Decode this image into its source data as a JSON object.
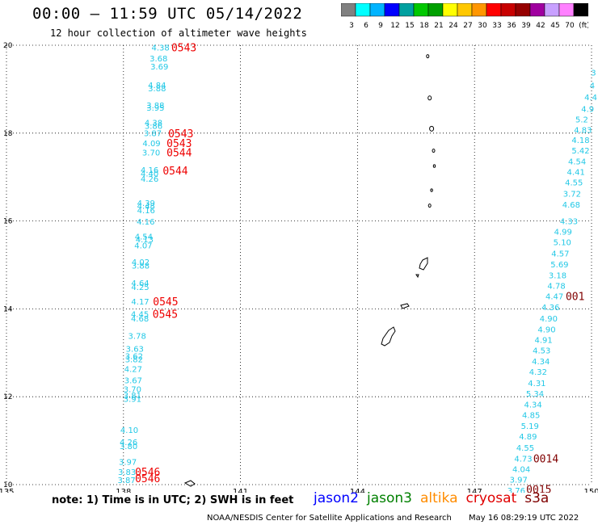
{
  "header": {
    "title": "00:00 – 11:59 UTC 05/14/2022",
    "subtitle": "12 hour collection of altimeter wave heights"
  },
  "colorbar": {
    "colors": [
      "#808080",
      "#00ffff",
      "#00b4ff",
      "#0000ff",
      "#00a0a0",
      "#00c800",
      "#00a000",
      "#ffff00",
      "#ffc800",
      "#ff9600",
      "#ff0000",
      "#c80000",
      "#960000",
      "#a000a0",
      "#c8a0ff",
      "#ff80ff",
      "#000000"
    ],
    "labels": [
      "3",
      "6",
      "9",
      "12",
      "15",
      "18",
      "21",
      "24",
      "27",
      "30",
      "33",
      "36",
      "39",
      "42",
      "45",
      "70",
      "(ft)"
    ]
  },
  "footer": {
    "note": "note:  1) Time is in UTC;  2) SWH is in feet",
    "satellites": [
      {
        "name": "jason2",
        "color": "#0000ff"
      },
      {
        "name": "jason3",
        "color": "#008000"
      },
      {
        "name": "altika",
        "color": "#ff8c00"
      },
      {
        "name": "cryosat",
        "color": "#e00000"
      },
      {
        "name": "s3a",
        "color": "#800000"
      }
    ],
    "credit": "NOAA/NESDIS Center for Satellite Applications and Research",
    "timestamp": "May 16 08:29:19 UTC 2022"
  },
  "chart_data": {
    "type": "scatter",
    "title": "00:00 – 11:59 UTC 05/14/2022",
    "xlim": [
      135,
      150
    ],
    "ylim": [
      10,
      20
    ],
    "xticks": [
      "135",
      "138",
      "141",
      "144",
      "147",
      "150"
    ],
    "yticks": [
      "10",
      "12",
      "14",
      "16",
      "18",
      "20"
    ],
    "grid": true,
    "track_color": "#22c8e6",
    "time_color_red": "#ee0000",
    "time_color_dark": "#800000",
    "track_west": [
      {
        "x": 138.95,
        "y": 19.95,
        "v": "4.38"
      },
      {
        "x": 138.9,
        "y": 19.71,
        "v": "3.68"
      },
      {
        "x": 138.92,
        "y": 19.52,
        "v": "3.69"
      },
      {
        "x": 138.86,
        "y": 19.1,
        "v": "4.84"
      },
      {
        "x": 138.86,
        "y": 19.03,
        "v": "3.88"
      },
      {
        "x": 138.82,
        "y": 18.64,
        "v": "3.88"
      },
      {
        "x": 138.82,
        "y": 18.58,
        "v": "3.95"
      },
      {
        "x": 138.77,
        "y": 18.24,
        "v": "4.38"
      },
      {
        "x": 138.77,
        "y": 18.17,
        "v": "3.86"
      },
      {
        "x": 138.75,
        "y": 18.01,
        "v": "3.87"
      },
      {
        "x": 138.72,
        "y": 17.78,
        "v": "4.09"
      },
      {
        "x": 138.71,
        "y": 17.56,
        "v": "3.70"
      },
      {
        "x": 138.67,
        "y": 17.17,
        "v": "4.16"
      },
      {
        "x": 138.67,
        "y": 17.09,
        "v": "4.40"
      },
      {
        "x": 138.67,
        "y": 16.97,
        "v": "4.26"
      },
      {
        "x": 138.58,
        "y": 16.42,
        "v": "4.39"
      },
      {
        "x": 138.58,
        "y": 16.35,
        "v": "4.48"
      },
      {
        "x": 138.58,
        "y": 16.25,
        "v": "4.16"
      },
      {
        "x": 138.57,
        "y": 15.99,
        "v": "4.16"
      },
      {
        "x": 138.52,
        "y": 15.65,
        "v": "4.54"
      },
      {
        "x": 138.54,
        "y": 15.59,
        "v": "4.13"
      },
      {
        "x": 138.51,
        "y": 15.45,
        "v": "4.07"
      },
      {
        "x": 138.44,
        "y": 15.07,
        "v": "4.02"
      },
      {
        "x": 138.44,
        "y": 14.99,
        "v": "3.88"
      },
      {
        "x": 138.43,
        "y": 14.6,
        "v": "4.64"
      },
      {
        "x": 138.43,
        "y": 14.5,
        "v": "4.25"
      },
      {
        "x": 138.43,
        "y": 14.17,
        "v": "4.17"
      },
      {
        "x": 138.42,
        "y": 13.89,
        "v": "4.45"
      },
      {
        "x": 138.42,
        "y": 13.79,
        "v": "4.68"
      },
      {
        "x": 138.35,
        "y": 13.39,
        "v": "3.78"
      },
      {
        "x": 138.29,
        "y": 13.1,
        "v": "3.63"
      },
      {
        "x": 138.27,
        "y": 12.93,
        "v": "3.62"
      },
      {
        "x": 138.27,
        "y": 12.86,
        "v": "3.82"
      },
      {
        "x": 138.25,
        "y": 12.64,
        "v": "4.27"
      },
      {
        "x": 138.25,
        "y": 12.38,
        "v": "3.67"
      },
      {
        "x": 138.23,
        "y": 12.18,
        "v": "3.70"
      },
      {
        "x": 138.23,
        "y": 12.04,
        "v": "3.81"
      },
      {
        "x": 138.23,
        "y": 11.96,
        "v": "3.91"
      },
      {
        "x": 138.15,
        "y": 11.25,
        "v": "4.10"
      },
      {
        "x": 138.13,
        "y": 10.97,
        "v": "4.26"
      },
      {
        "x": 138.13,
        "y": 10.88,
        "v": "3.80"
      },
      {
        "x": 138.11,
        "y": 10.52,
        "v": "3.97"
      },
      {
        "x": 138.09,
        "y": 10.29,
        "v": "3.83"
      },
      {
        "x": 138.08,
        "y": 10.11,
        "v": "3.87"
      }
    ],
    "track_east": [
      {
        "x": 150.05,
        "y": 19.38,
        "v": "3"
      },
      {
        "x": 150.02,
        "y": 19.09,
        "v": "4"
      },
      {
        "x": 149.98,
        "y": 18.82,
        "v": "4.4"
      },
      {
        "x": 149.9,
        "y": 18.56,
        "v": "4.9"
      },
      {
        "x": 149.75,
        "y": 18.32,
        "v": "5.2"
      },
      {
        "x": 149.78,
        "y": 18.08,
        "v": "4.83"
      },
      {
        "x": 149.72,
        "y": 17.85,
        "v": "4.18"
      },
      {
        "x": 149.72,
        "y": 17.61,
        "v": "5.42"
      },
      {
        "x": 149.63,
        "y": 17.36,
        "v": "4.54"
      },
      {
        "x": 149.6,
        "y": 17.12,
        "v": "4.41"
      },
      {
        "x": 149.55,
        "y": 16.88,
        "v": "4.55"
      },
      {
        "x": 149.5,
        "y": 16.63,
        "v": "3.72"
      },
      {
        "x": 149.48,
        "y": 16.38,
        "v": "4.68"
      },
      {
        "x": 149.42,
        "y": 16.0,
        "v": "4.33"
      },
      {
        "x": 149.27,
        "y": 15.76,
        "v": "4.99"
      },
      {
        "x": 149.25,
        "y": 15.52,
        "v": "5.10"
      },
      {
        "x": 149.2,
        "y": 15.27,
        "v": "4.57"
      },
      {
        "x": 149.18,
        "y": 15.02,
        "v": "5.69"
      },
      {
        "x": 149.13,
        "y": 14.77,
        "v": "3.18"
      },
      {
        "x": 149.1,
        "y": 14.53,
        "v": "4.78"
      },
      {
        "x": 149.05,
        "y": 14.29,
        "v": "4.47"
      },
      {
        "x": 148.95,
        "y": 14.04,
        "v": "4.36"
      },
      {
        "x": 148.9,
        "y": 13.79,
        "v": "4.90"
      },
      {
        "x": 148.85,
        "y": 13.54,
        "v": "4.90"
      },
      {
        "x": 148.77,
        "y": 13.3,
        "v": "4.91"
      },
      {
        "x": 148.72,
        "y": 13.06,
        "v": "4.53"
      },
      {
        "x": 148.7,
        "y": 12.81,
        "v": "4.34"
      },
      {
        "x": 148.63,
        "y": 12.57,
        "v": "4.32"
      },
      {
        "x": 148.6,
        "y": 12.32,
        "v": "4.31"
      },
      {
        "x": 148.55,
        "y": 12.08,
        "v": "5.34"
      },
      {
        "x": 148.5,
        "y": 11.83,
        "v": "4.34"
      },
      {
        "x": 148.45,
        "y": 11.59,
        "v": "4.85"
      },
      {
        "x": 148.42,
        "y": 11.34,
        "v": "5.19"
      },
      {
        "x": 148.37,
        "y": 11.1,
        "v": "4.89"
      },
      {
        "x": 148.3,
        "y": 10.85,
        "v": "4.55"
      },
      {
        "x": 148.25,
        "y": 10.6,
        "v": "4.73"
      },
      {
        "x": 148.2,
        "y": 10.36,
        "v": "4.04"
      },
      {
        "x": 148.13,
        "y": 10.12,
        "v": "3.97"
      },
      {
        "x": 148.07,
        "y": 9.87,
        "v": "3.76"
      }
    ],
    "time_labels": [
      {
        "x": 139.55,
        "y": 19.95,
        "t": "0543",
        "c": "red"
      },
      {
        "x": 139.47,
        "y": 18.0,
        "t": "0543",
        "c": "red"
      },
      {
        "x": 139.43,
        "y": 17.78,
        "t": "0543",
        "c": "red"
      },
      {
        "x": 139.43,
        "y": 17.56,
        "v2": "",
        "t": "0544",
        "c": "red"
      },
      {
        "x": 139.33,
        "y": 17.15,
        "t": "0544",
        "c": "red"
      },
      {
        "x": 139.08,
        "y": 14.17,
        "t": "0545",
        "c": "red"
      },
      {
        "x": 139.07,
        "y": 13.89,
        "t": "0545",
        "c": "red"
      },
      {
        "x": 138.62,
        "y": 10.29,
        "t": "0546",
        "c": "red"
      },
      {
        "x": 138.62,
        "y": 10.15,
        "t": "0546",
        "c": "red"
      },
      {
        "x": 149.58,
        "y": 14.29,
        "t": "001",
        "c": "dark"
      },
      {
        "x": 148.83,
        "y": 10.6,
        "t": "0014",
        "c": "dark"
      },
      {
        "x": 148.65,
        "y": 9.9,
        "t": "0015",
        "c": "dark"
      }
    ]
  }
}
